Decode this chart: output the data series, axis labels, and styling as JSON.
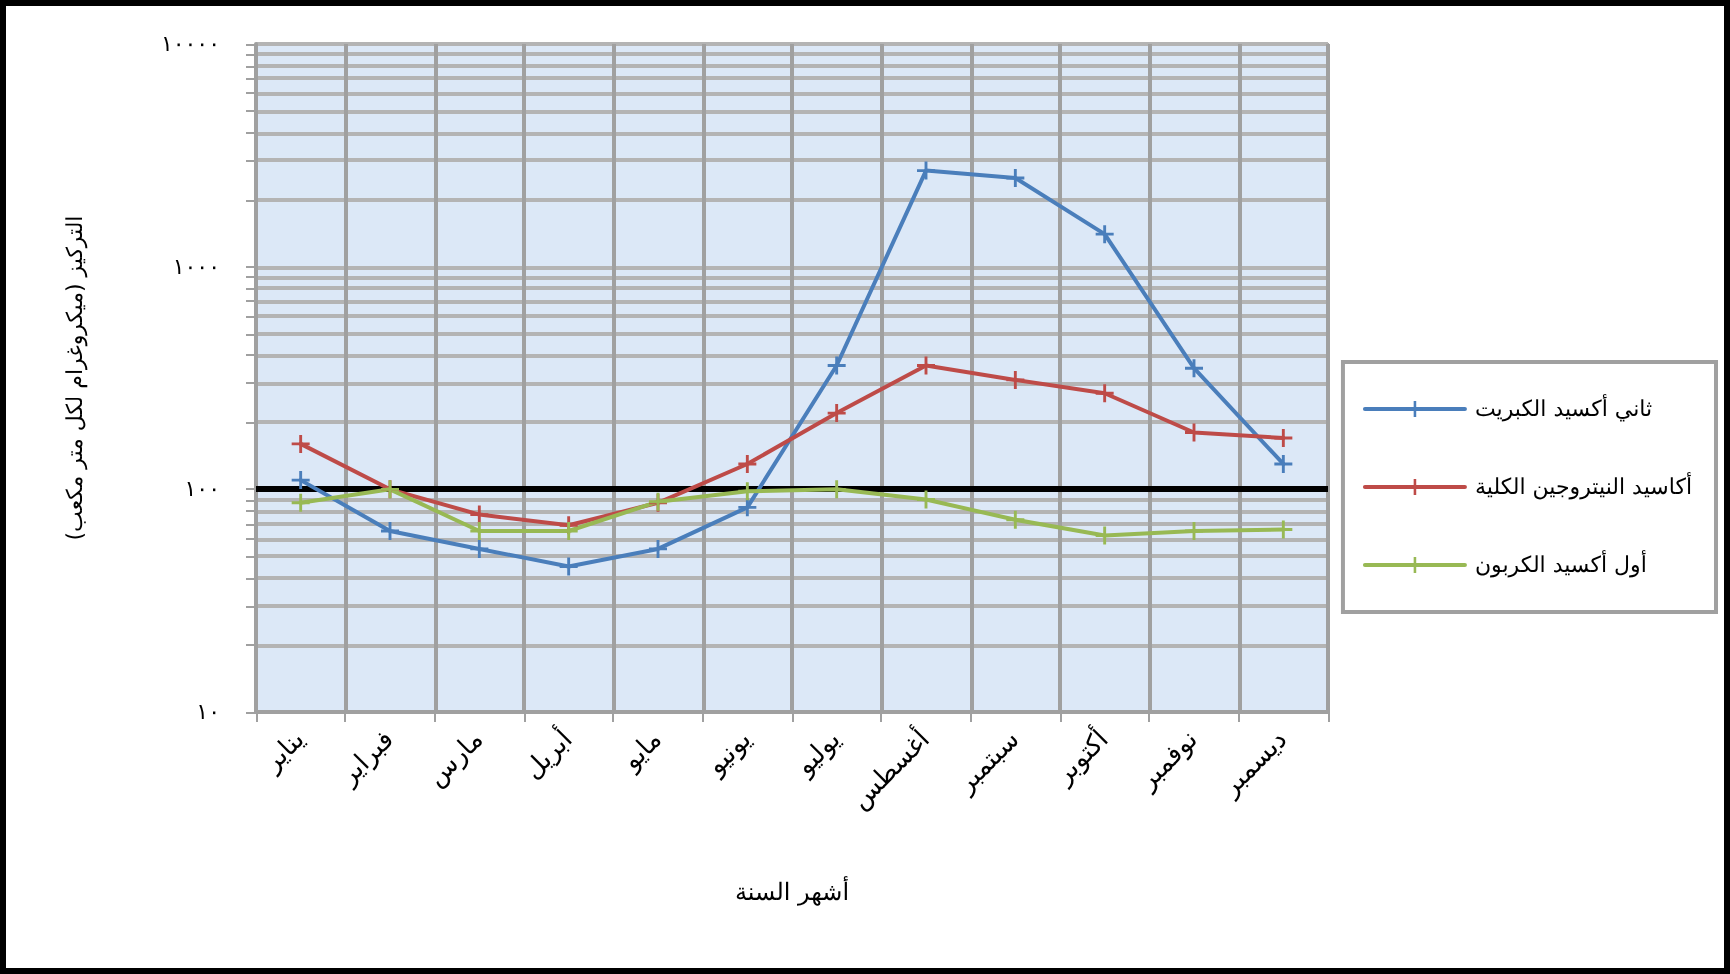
{
  "chart_data": {
    "type": "line",
    "xlabel": "أشهر السنة",
    "ylabel": "التركيز (ميكروغرام لكل متر مكعب)",
    "categories": [
      "يناير",
      "فبراير",
      "مارس",
      "أبريل",
      "مايو",
      "يونيو",
      "يوليو",
      "أغسطس",
      "سبتمبر",
      "أكتوبر",
      "نوفمبر",
      "ديسمبر"
    ],
    "series": [
      {
        "name": "ثاني أكسيد الكبريت",
        "color": "#4a7ebb",
        "values": [
          110,
          65,
          54,
          45,
          54,
          83,
          360,
          2700,
          2500,
          1400,
          350,
          130
        ]
      },
      {
        "name": "أكاسيد النيتروجين الكلية",
        "color": "#be4b48",
        "values": [
          160,
          100,
          77,
          69,
          87,
          130,
          220,
          360,
          310,
          270,
          180,
          170
        ]
      },
      {
        "name": "أول أكسيد الكربون",
        "color": "#98b954",
        "values": [
          87,
          100,
          65,
          65,
          88,
          98,
          100,
          90,
          73,
          62,
          65,
          66
        ]
      }
    ],
    "log": "y",
    "ylim": [
      10,
      10000
    ],
    "yticks": [
      {
        "value": 10,
        "label": "١٠"
      },
      {
        "value": 20,
        "label": null
      },
      {
        "value": 30,
        "label": null
      },
      {
        "value": 40,
        "label": null
      },
      {
        "value": 50,
        "label": null
      },
      {
        "value": 60,
        "label": null
      },
      {
        "value": 70,
        "label": null
      },
      {
        "value": 80,
        "label": null
      },
      {
        "value": 90,
        "label": null
      },
      {
        "value": 100,
        "label": "١٠٠"
      },
      {
        "value": 200,
        "label": null
      },
      {
        "value": 300,
        "label": null
      },
      {
        "value": 400,
        "label": null
      },
      {
        "value": 500,
        "label": null
      },
      {
        "value": 600,
        "label": null
      },
      {
        "value": 700,
        "label": null
      },
      {
        "value": 800,
        "label": null
      },
      {
        "value": 900,
        "label": null
      },
      {
        "value": 1000,
        "label": "١٠٠٠"
      },
      {
        "value": 2000,
        "label": null
      },
      {
        "value": 3000,
        "label": null
      },
      {
        "value": 4000,
        "label": null
      },
      {
        "value": 5000,
        "label": null
      },
      {
        "value": 6000,
        "label": null
      },
      {
        "value": 7000,
        "label": null
      },
      {
        "value": 8000,
        "label": null
      },
      {
        "value": 9000,
        "label": null
      },
      {
        "value": 10000,
        "label": "١٠٠٠٠"
      }
    ],
    "grid": true,
    "legend": "right",
    "marker": "cross",
    "line_style": "solid",
    "ref_lines": [
      {
        "axis": "y",
        "value": 100,
        "color": "#000000"
      }
    ]
  }
}
